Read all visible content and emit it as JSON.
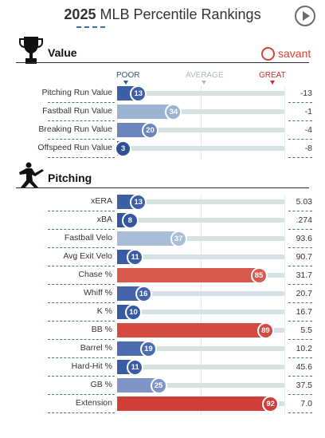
{
  "header": {
    "title_year": "2025",
    "title_rest": " MLB Percentile Rankings"
  },
  "scale": {
    "poor_label": "POOR",
    "average_label": "AVERAGE",
    "great_label": "GREAT"
  },
  "sections": {
    "value": {
      "title": "Value",
      "icon": "trophy-icon",
      "brand": "savant",
      "rows": [
        {
          "label": "Pitching Run Value",
          "percentile": 13,
          "value": "-13",
          "color": "#3d5fa8"
        },
        {
          "label": "Fastball Run Value",
          "percentile": 34,
          "value": "-1",
          "color": "#9bb3d1"
        },
        {
          "label": "Breaking Run Value",
          "percentile": 20,
          "value": "-4",
          "color": "#6b85bd"
        },
        {
          "label": "Offspeed Run Value",
          "percentile": 3,
          "value": "-8",
          "color": "#2c4f96"
        }
      ]
    },
    "pitching": {
      "title": "Pitching",
      "icon": "pitcher-icon",
      "rows": [
        {
          "label": "xERA",
          "percentile": 13,
          "value": "5.03",
          "color": "#3d5fa8"
        },
        {
          "label": "xBA",
          "percentile": 8,
          "value": ".274",
          "color": "#34589f"
        },
        {
          "label": "Fastball Velo",
          "percentile": 37,
          "value": "93.6",
          "color": "#a8bdd8"
        },
        {
          "label": "Avg Exit Velo",
          "percentile": 11,
          "value": "90.7",
          "color": "#3a5ca6"
        },
        {
          "label": "Chase %",
          "percentile": 85,
          "value": "31.7",
          "color": "#d85a4f"
        },
        {
          "label": "Whiff %",
          "percentile": 16,
          "value": "20.7",
          "color": "#4564ab"
        },
        {
          "label": "K %",
          "percentile": 10,
          "value": "16.7",
          "color": "#385aa3"
        },
        {
          "label": "BB %",
          "percentile": 89,
          "value": "5.5",
          "color": "#d44a40"
        },
        {
          "label": "Barrel %",
          "percentile": 19,
          "value": "10.2",
          "color": "#4d6bb0"
        },
        {
          "label": "Hard-Hit %",
          "percentile": 11,
          "value": "45.6",
          "color": "#3a5ca6"
        },
        {
          "label": "GB %",
          "percentile": 25,
          "value": "37.5",
          "color": "#7e95c6"
        },
        {
          "label": "Extension",
          "percentile": 92,
          "value": "7.0",
          "color": "#d33f38"
        }
      ]
    }
  }
}
